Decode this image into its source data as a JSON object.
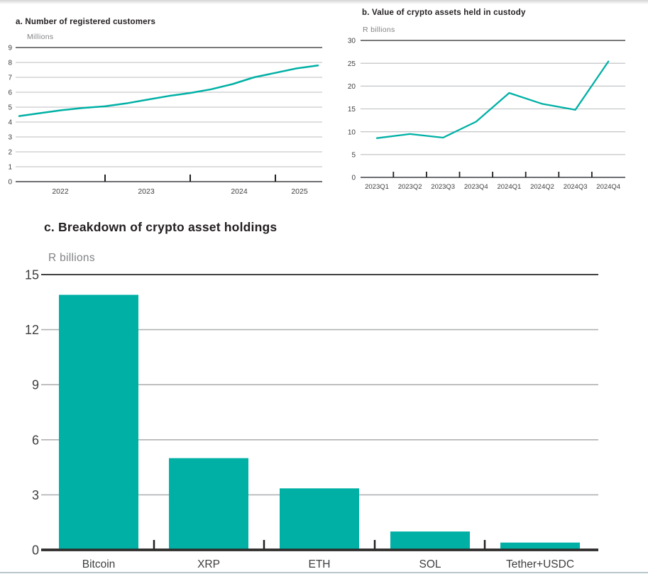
{
  "page": {
    "background": "#ffffff",
    "accent_color": "#00b0a5",
    "title_color": "#231f20",
    "muted_text_color": "#808285",
    "axis_text_color": "#414042"
  },
  "chart_data": [
    {
      "id": "a",
      "type": "line",
      "title": "a. Number of registered customers",
      "unit_label": "Millions",
      "xlabel": "",
      "ylabel": "Millions",
      "x": [
        2022.0,
        2022.25,
        2022.5,
        2022.75,
        2023.0,
        2023.25,
        2023.5,
        2023.75,
        2024.0,
        2024.25,
        2024.5,
        2024.75,
        2025.0,
        2025.25,
        2025.5
      ],
      "values": [
        4.4,
        4.6,
        4.8,
        4.95,
        5.05,
        5.25,
        5.5,
        5.75,
        5.95,
        6.2,
        6.55,
        7.0,
        7.3,
        7.6,
        7.8
      ],
      "x_tick_labels": [
        "2022",
        "2023",
        "2024",
        "2025"
      ],
      "ylim": [
        0,
        9
      ],
      "y_tick_step": 1,
      "grid": true,
      "legend": "none",
      "line_color": "#00b0a5"
    },
    {
      "id": "b",
      "type": "line",
      "title": "b. Value of crypto assets held in custody",
      "unit_label": "R billions",
      "xlabel": "",
      "ylabel": "R billions",
      "categories": [
        "2023Q1",
        "2023Q2",
        "2023Q3",
        "2023Q4",
        "2024Q1",
        "2024Q2",
        "2024Q3",
        "2024Q4"
      ],
      "values": [
        8.6,
        9.5,
        8.7,
        12.2,
        18.5,
        16.1,
        14.8,
        25.4
      ],
      "ylim": [
        0,
        30
      ],
      "y_tick_step": 5,
      "grid": true,
      "legend": "none",
      "line_color": "#00b0a5"
    },
    {
      "id": "c",
      "type": "bar",
      "title": "c. Breakdown of crypto asset holdings",
      "unit_label": "R billions",
      "xlabel": "",
      "ylabel": "R billions",
      "categories": [
        "Bitcoin",
        "XRP",
        "ETH",
        "SOL",
        "Tether+USDC"
      ],
      "values": [
        13.9,
        5.0,
        3.35,
        1.0,
        0.4
      ],
      "ylim": [
        0,
        15
      ],
      "y_tick_step": 3,
      "grid": true,
      "legend": "none",
      "bar_color": "#00b0a5"
    }
  ]
}
